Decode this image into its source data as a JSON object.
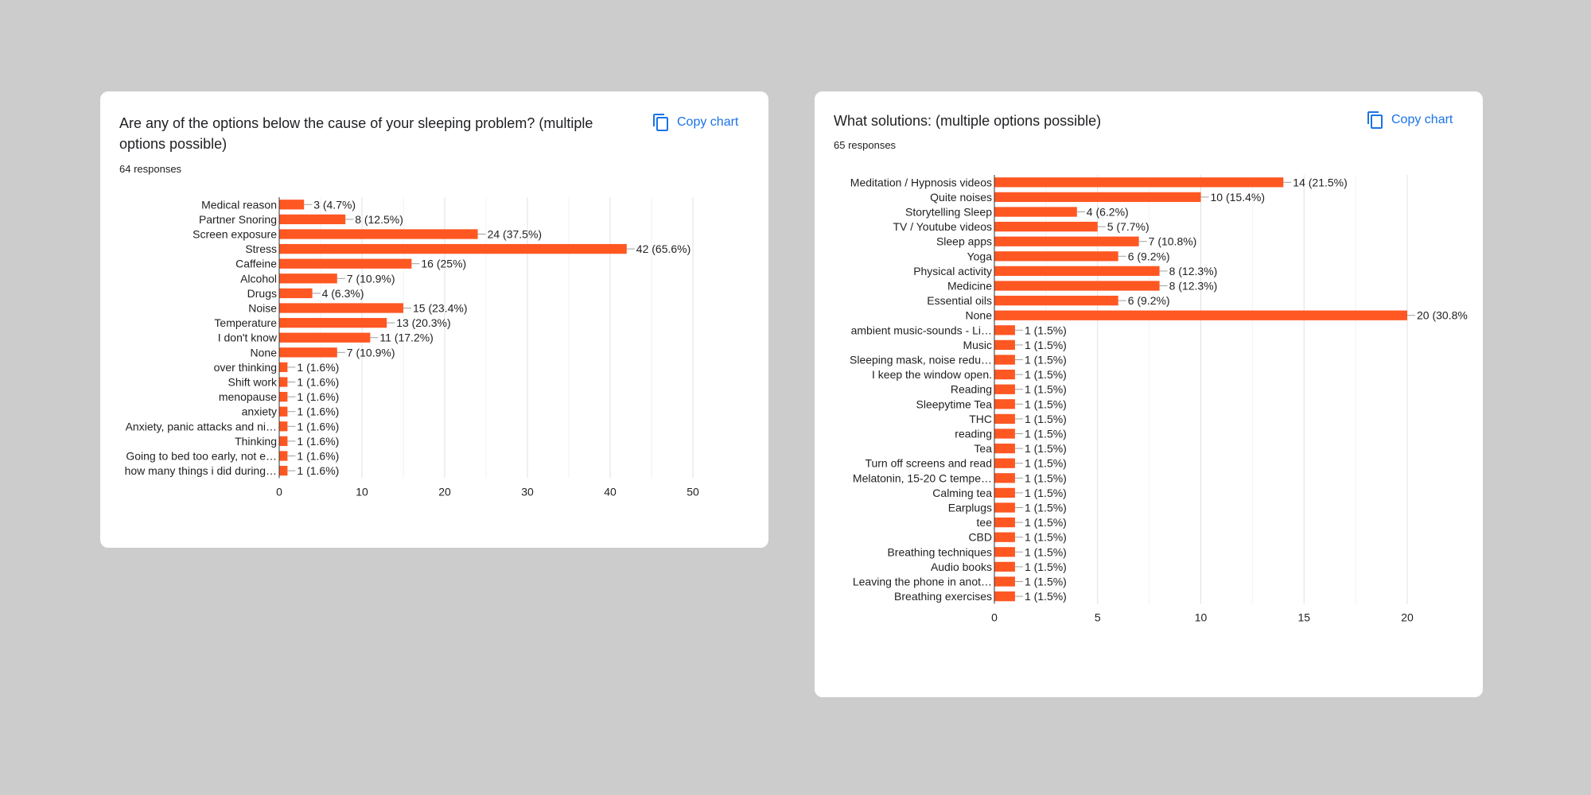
{
  "chart_data": [
    {
      "type": "bar",
      "orientation": "horizontal",
      "title": "Are any of the options below the cause of your sleeping problem? (multiple options possible)",
      "subtitle": "64 responses",
      "copy_label": "Copy chart",
      "color": "#ff5722",
      "categories": [
        "Medical reason",
        "Partner Snoring",
        "Screen exposure",
        "Stress",
        "Caffeine",
        "Alcohol",
        "Drugs",
        "Noise",
        "Temperature",
        "I don't know",
        "None",
        "over thinking",
        "Shift work",
        "menopause",
        "anxiety",
        "Anxiety, panic attacks and ni…",
        "Thinking",
        "Going to bed too early, not e…",
        "how many things i did during…"
      ],
      "values": [
        3,
        8,
        24,
        42,
        16,
        7,
        4,
        15,
        13,
        11,
        7,
        1,
        1,
        1,
        1,
        1,
        1,
        1,
        1
      ],
      "data_labels": [
        "3 (4.7%)",
        "8 (12.5%)",
        "24 (37.5%)",
        "42 (65.6%)",
        "16 (25%)",
        "7 (10.9%)",
        "4 (6.3%)",
        "15 (23.4%)",
        "13 (20.3%)",
        "11 (17.2%)",
        "7 (10.9%)",
        "1 (1.6%)",
        "1 (1.6%)",
        "1 (1.6%)",
        "1 (1.6%)",
        "1 (1.6%)",
        "1 (1.6%)",
        "1 (1.6%)",
        "1 (1.6%)"
      ],
      "xlim": [
        0,
        50
      ],
      "xticks": [
        "0",
        "10",
        "20",
        "30",
        "40",
        "50"
      ],
      "grid": true
    },
    {
      "type": "bar",
      "orientation": "horizontal",
      "title": "What solutions: (multiple options possible)",
      "subtitle": "65 responses",
      "copy_label": "Copy chart",
      "color": "#ff5722",
      "categories": [
        "Meditation / Hypnosis videos",
        "Quite noises",
        "Storytelling Sleep",
        "TV / Youtube videos",
        "Sleep apps",
        "Yoga",
        "Physical activity",
        "Medicine",
        "Essential oils",
        "None",
        "ambient music-sounds - Li…",
        "Music",
        "Sleeping mask, noise redu…",
        "I keep the window open.",
        "Reading",
        "Sleepytime Tea",
        "THC",
        "reading",
        "Tea",
        "Turn off screens and read",
        "Melatonin, 15-20 C tempe…",
        "Calming tea",
        "Earplugs",
        "tee",
        "CBD",
        "Breathing techniques",
        "Audio books",
        "Leaving the phone in anot…",
        "Breathing exercises"
      ],
      "values": [
        14,
        10,
        4,
        5,
        7,
        6,
        8,
        8,
        6,
        20,
        1,
        1,
        1,
        1,
        1,
        1,
        1,
        1,
        1,
        1,
        1,
        1,
        1,
        1,
        1,
        1,
        1,
        1,
        1
      ],
      "data_labels": [
        "14 (21.5%)",
        "10 (15.4%)",
        "4 (6.2%)",
        "5 (7.7%)",
        "7 (10.8%)",
        "6 (9.2%)",
        "8 (12.3%)",
        "8 (12.3%)",
        "6 (9.2%)",
        "20 (30.8%",
        "1 (1.5%)",
        "1 (1.5%)",
        "1 (1.5%)",
        "1 (1.5%)",
        "1 (1.5%)",
        "1 (1.5%)",
        "1 (1.5%)",
        "1 (1.5%)",
        "1 (1.5%)",
        "1 (1.5%)",
        "1 (1.5%)",
        "1 (1.5%)",
        "1 (1.5%)",
        "1 (1.5%)",
        "1 (1.5%)",
        "1 (1.5%)",
        "1 (1.5%)",
        "1 (1.5%)",
        "1 (1.5%)"
      ],
      "xlim": [
        0,
        20
      ],
      "xticks": [
        "0",
        "5",
        "10",
        "15",
        "20"
      ],
      "grid": true
    }
  ]
}
